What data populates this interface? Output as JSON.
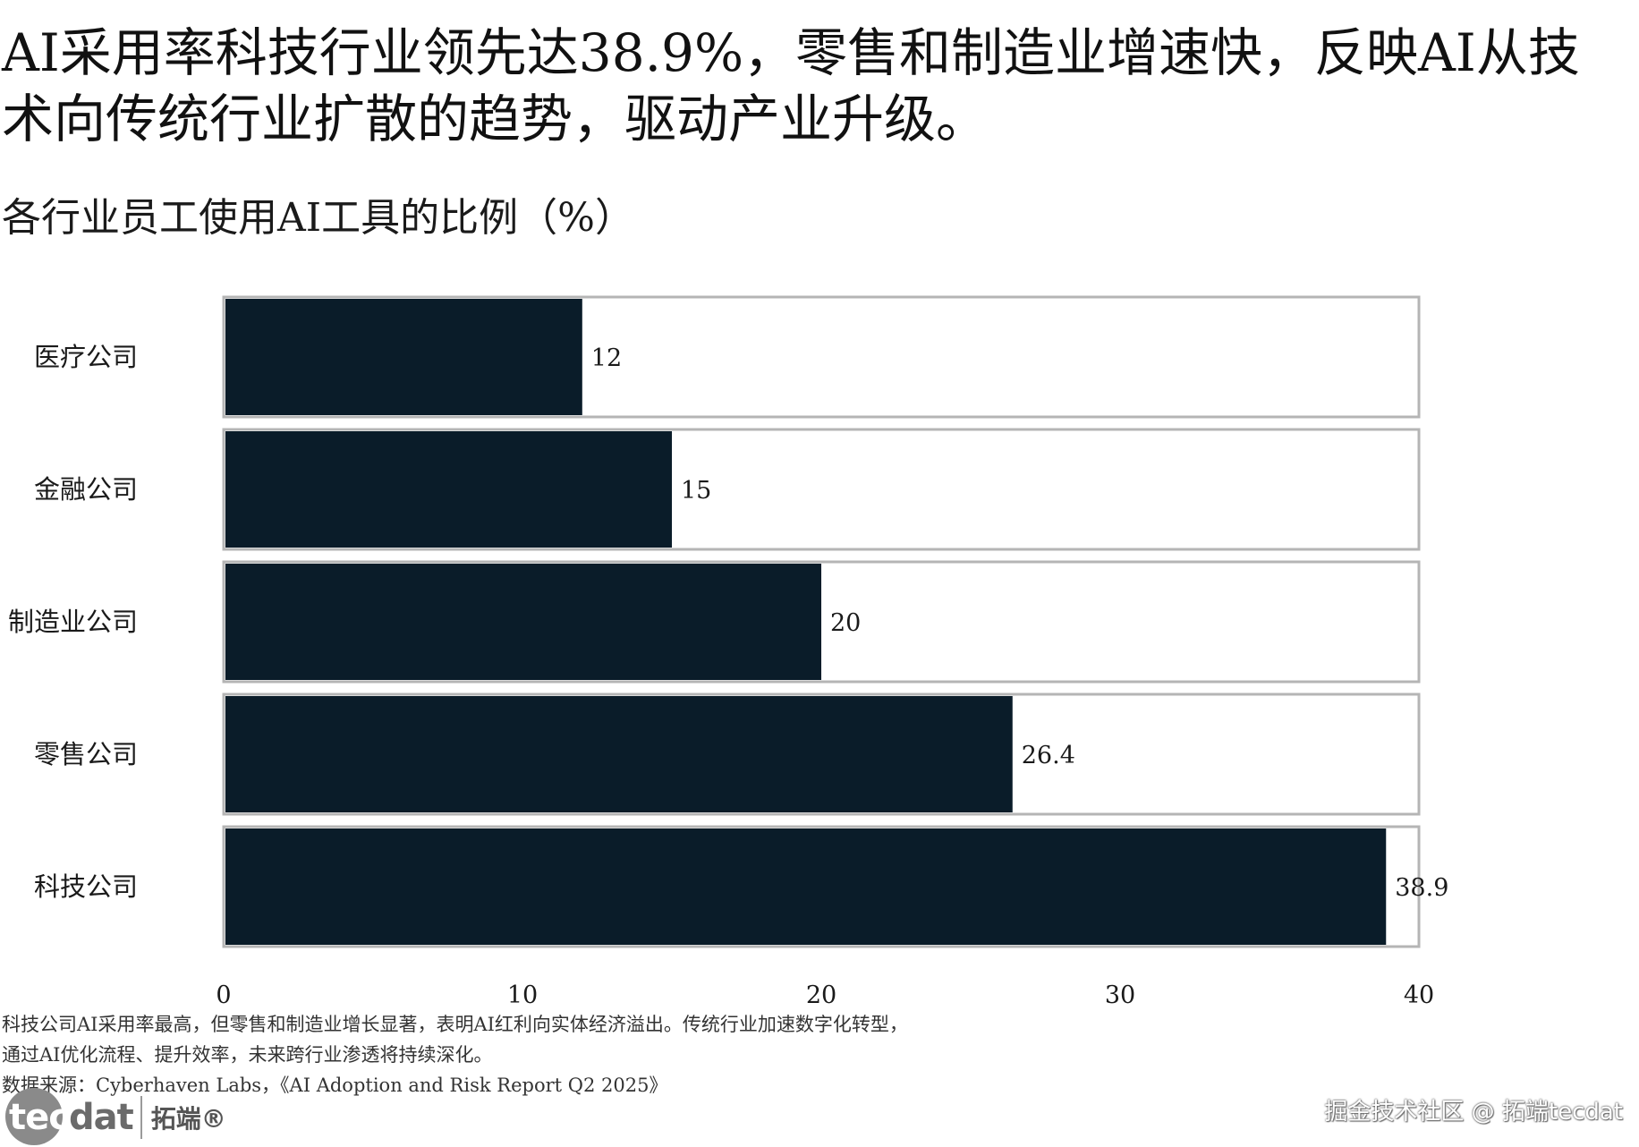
{
  "headline": "AI采用率科技行业领先达38.9%，零售和制造业增速快，反映AI从技术向传统行业扩散的趋势，驱动产业升级。",
  "chart_data": {
    "type": "bar",
    "orientation": "horizontal",
    "title": "各行业员工使用AI工具的比例（%）",
    "categories": [
      "医疗公司",
      "金融公司",
      "制造业公司",
      "零售公司",
      "科技公司"
    ],
    "values": [
      12,
      15,
      20,
      26.4,
      38.9
    ],
    "value_labels": [
      "12",
      "15",
      "20",
      "26.4",
      "38.9"
    ],
    "xlim": [
      0,
      40
    ],
    "xticks": [
      "0",
      "10",
      "20",
      "30",
      "40"
    ],
    "grid": false,
    "bar_color": "#0a1c29",
    "track_border_color": "#b5b5b5"
  },
  "notes": {
    "line1": "科技公司AI采用率最高，但零售和制造业增长显著，表明AI红利向实体经济溢出。传统行业加速数字化转型，",
    "line2": "通过AI优化流程、提升效率，未来跨行业渗透将持续深化。",
    "source": "数据来源：Cyberhaven Labs，《AI Adoption and Risk Report Q2 2025》"
  },
  "logo": {
    "en_prefix": "tec",
    "en_suffix": "dat",
    "cn": "拓端®"
  },
  "watermark": "掘金技术社区 @ 拓端tecdat"
}
